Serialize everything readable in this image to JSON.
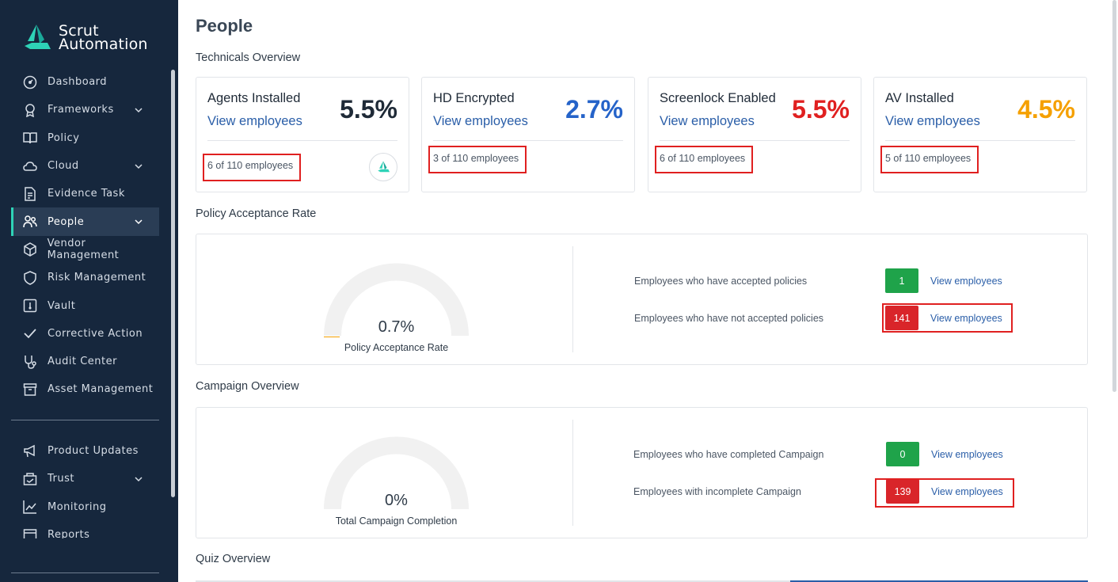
{
  "brand": {
    "line1": "Scrut",
    "line2": "Automation",
    "accent": "#2ed3b7"
  },
  "sidebar": {
    "items": [
      {
        "label": "Dashboard",
        "icon": "dashboard-icon",
        "chevron": false
      },
      {
        "label": "Frameworks",
        "icon": "award-icon",
        "chevron": true
      },
      {
        "label": "Policy",
        "icon": "book-icon",
        "chevron": false
      },
      {
        "label": "Cloud",
        "icon": "cloud-icon",
        "chevron": true
      },
      {
        "label": "Evidence Task",
        "icon": "evidence-icon",
        "chevron": false
      },
      {
        "label": "People",
        "icon": "people-icon",
        "chevron": true,
        "active": true
      },
      {
        "label": "Vendor Management",
        "icon": "box-icon",
        "chevron": false
      },
      {
        "label": "Risk Management",
        "icon": "shield-icon",
        "chevron": false
      },
      {
        "label": "Vault",
        "icon": "vault-icon",
        "chevron": false
      },
      {
        "label": "Corrective Action",
        "icon": "check-icon",
        "chevron": false
      },
      {
        "label": "Audit Center",
        "icon": "stethoscope-icon",
        "chevron": false
      },
      {
        "label": "Asset Management",
        "icon": "archive-icon",
        "chevron": false
      }
    ],
    "items2": [
      {
        "label": "Product Updates",
        "icon": "megaphone-icon",
        "chevron": false
      },
      {
        "label": "Trust",
        "icon": "trust-icon",
        "chevron": true
      },
      {
        "label": "Monitoring",
        "icon": "chart-icon",
        "chevron": false
      },
      {
        "label": "Reports",
        "icon": "reports-icon",
        "chevron": false
      }
    ]
  },
  "page": {
    "title": "People"
  },
  "technicals": {
    "title": "Technicals Overview",
    "cards": [
      {
        "label": "Agents Installed",
        "link": "View employees",
        "pct": "5.5%",
        "color": "#1f2a37",
        "count": "6 of 110 employees"
      },
      {
        "label": "HD Encrypted",
        "link": "View employees",
        "pct": "2.7%",
        "color": "#2563c9",
        "count": "3 of 110 employees"
      },
      {
        "label": "Screenlock Enabled",
        "link": "View employees",
        "pct": "5.5%",
        "color": "#e02020",
        "count": "6 of 110 employees"
      },
      {
        "label": "AV Installed",
        "link": "View employees",
        "pct": "4.5%",
        "color": "#f5a000",
        "count": "5 of 110 employees"
      }
    ]
  },
  "policy": {
    "title": "Policy Acceptance Rate",
    "gauge_value": "0.7%",
    "gauge_caption": "Policy Acceptance Rate",
    "gauge_fraction": 0.007,
    "accepted_label": "Employees who have accepted policies",
    "accepted_count": "1",
    "not_accepted_label": "Employees who have not accepted policies",
    "not_accepted_count": "141",
    "link": "View employees"
  },
  "campaign": {
    "title": "Campaign Overview",
    "gauge_value": "0%",
    "gauge_caption": "Total Campaign Completion",
    "completed_label": "Employees who have completed Campaign",
    "completed_count": "0",
    "incomplete_label": "Employees with incomplete Campaign",
    "incomplete_count": "139",
    "link": "View employees"
  },
  "quiz": {
    "title": "Quiz Overview"
  }
}
